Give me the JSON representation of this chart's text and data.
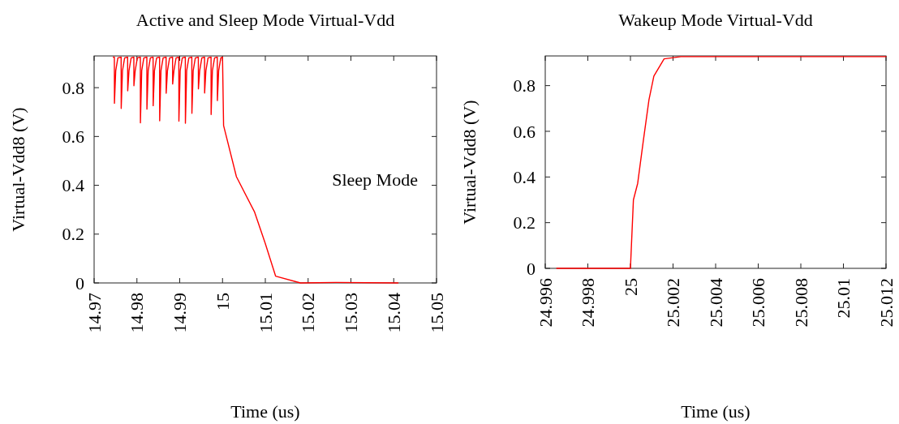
{
  "chart_data": [
    {
      "type": "line",
      "title": "Active and Sleep Mode Virtual-Vdd",
      "xlabel": "Time (us)",
      "ylabel": "Virtual-Vdd8 (V)",
      "annotations": [
        "Sleep Mode"
      ],
      "xlim": [
        14.97,
        15.05
      ],
      "xticks": [
        14.97,
        14.98,
        14.99,
        15,
        15.01,
        15.02,
        15.03,
        15.04,
        15.05
      ],
      "ylim": [
        0,
        0.93
      ],
      "yticks": [
        0,
        0.2,
        0.4,
        0.6,
        0.8
      ],
      "grid": false,
      "marker": "none",
      "line_style": "solid",
      "series": [
        {
          "color": "#ff0000",
          "x": [
            14.97449,
            14.97473,
            14.97475,
            14.97505,
            14.97555,
            14.97631,
            14.97633,
            14.97663,
            14.97713,
            14.97783,
            14.97785,
            14.97815,
            14.97865,
            14.97928,
            14.9793,
            14.9796,
            14.9801,
            14.9808,
            14.98082,
            14.98112,
            14.98162,
            14.98232,
            14.98234,
            14.98264,
            14.98314,
            14.98378,
            14.9838,
            14.9841,
            14.9846,
            14.9853,
            14.98532,
            14.98562,
            14.98612,
            14.98682,
            14.98684,
            14.98714,
            14.98764,
            14.98833,
            14.98835,
            14.98865,
            14.98915,
            14.98979,
            14.98981,
            14.99011,
            14.99061,
            14.99131,
            14.99133,
            14.99163,
            14.99213,
            14.99283,
            14.99285,
            14.99315,
            14.99365,
            14.99435,
            14.99437,
            14.99467,
            14.99517,
            14.9958,
            14.99582,
            14.99612,
            14.99662,
            14.99732,
            14.99734,
            14.99764,
            14.99814,
            14.99878,
            14.9988,
            14.9991,
            14.9996,
            15.0,
            15.00025,
            15.00325,
            15.0075,
            15.01,
            15.0124,
            15.0182,
            15.0265,
            15.041
          ],
          "values": [
            0.925,
            0.925,
            0.736,
            0.87,
            0.922,
            0.925,
            0.715,
            0.87,
            0.922,
            0.925,
            0.787,
            0.87,
            0.922,
            0.925,
            0.808,
            0.87,
            0.922,
            0.925,
            0.656,
            0.87,
            0.922,
            0.925,
            0.712,
            0.87,
            0.922,
            0.925,
            0.726,
            0.87,
            0.922,
            0.925,
            0.664,
            0.87,
            0.922,
            0.925,
            0.777,
            0.87,
            0.922,
            0.925,
            0.815,
            0.87,
            0.922,
            0.925,
            0.663,
            0.87,
            0.922,
            0.925,
            0.654,
            0.87,
            0.922,
            0.925,
            0.695,
            0.87,
            0.922,
            0.925,
            0.795,
            0.87,
            0.922,
            0.925,
            0.778,
            0.87,
            0.922,
            0.925,
            0.69,
            0.87,
            0.922,
            0.925,
            0.747,
            0.87,
            0.922,
            0.925,
            0.645,
            0.435,
            0.29,
            0.161,
            0.028,
            0,
            0.002,
            0
          ]
        }
      ]
    },
    {
      "type": "line",
      "title": "Wakeup Mode Virtual-Vdd",
      "xlabel": "Time (us)",
      "ylabel": "Virtual-Vdd8 (V)",
      "xlim": [
        24.996,
        25.012
      ],
      "xticks": [
        24.996,
        24.998,
        25,
        25.002,
        25.004,
        25.006,
        25.008,
        25.01,
        25.012
      ],
      "ylim": [
        0,
        0.93
      ],
      "yticks": [
        0,
        0.2,
        0.4,
        0.6,
        0.8
      ],
      "grid": false,
      "marker": "none",
      "line_style": "solid",
      "series": [
        {
          "color": "#ff0000",
          "x": [
            24.99654,
            25.0,
            25.00014,
            25.00034,
            25.0006,
            25.00087,
            25.0011,
            25.00158,
            25.00237,
            25.012
          ],
          "values": [
            0,
            0,
            0.3,
            0.372,
            0.555,
            0.738,
            0.842,
            0.917,
            0.927,
            0.927
          ]
        }
      ]
    }
  ]
}
